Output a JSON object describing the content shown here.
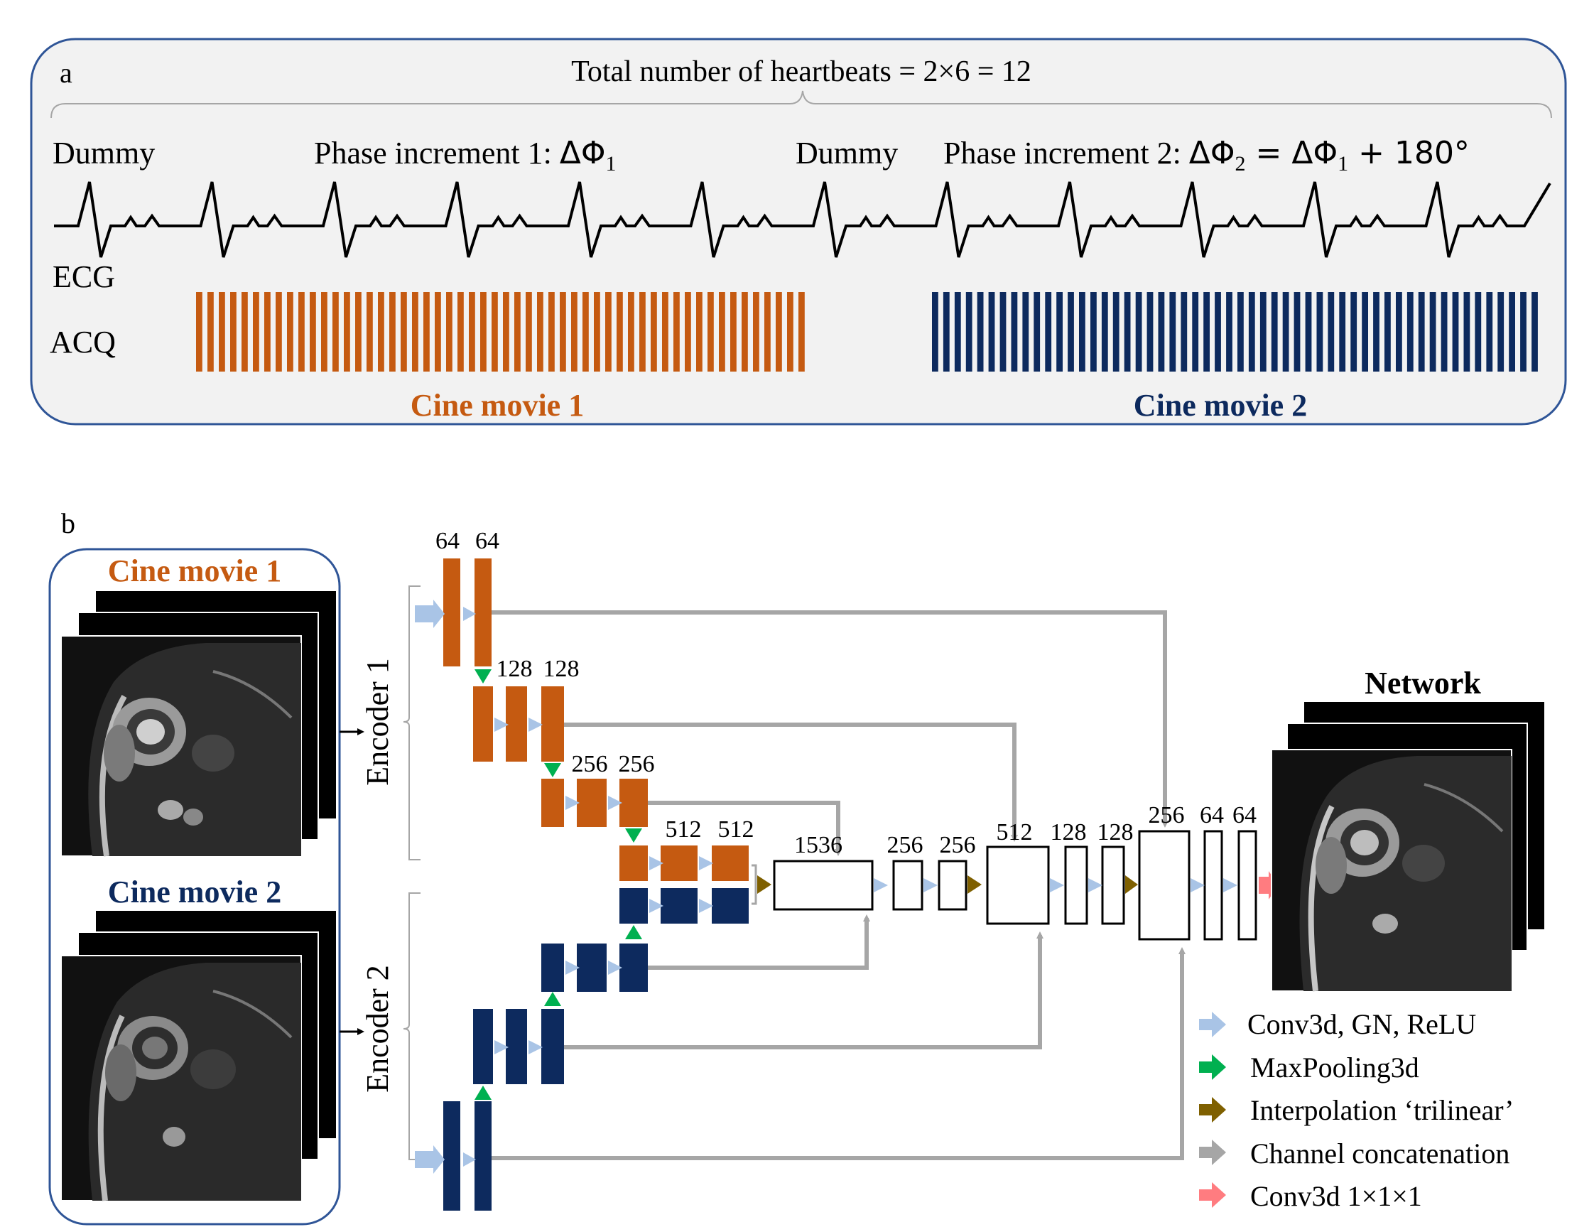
{
  "panel_a": {
    "letter": "a",
    "total_label": "Total number of heartbeats = 2×6 = 12",
    "dummy_1": "Dummy",
    "phase_1_prefix": "Phase increment 1: ",
    "phase_1_symbol": "ΔΦ",
    "phase_1_sub": "1",
    "dummy_2": "Dummy",
    "phase_2_prefix": "Phase increment 2: ",
    "phase_2_symbol": "ΔΦ",
    "phase_2_sub": "2",
    "phase_2_eq": " = ΔΦ",
    "phase_2_sub2": "1",
    "phase_2_tail": " + 180°",
    "ecg_label": "ECG",
    "acq_label": "ACQ",
    "cine_1_label": "Cine movie 1",
    "cine_2_label": "Cine movie 2",
    "colors": {
      "cine_1": "#C55A11",
      "cine_2": "#0D2A5E"
    }
  },
  "panel_b": {
    "letter": "b",
    "input_cine_1": "Cine movie 1",
    "input_cine_2": "Cine movie 2",
    "encoder_1": "Encoder 1",
    "encoder_2": "Encoder 2",
    "network_label": "Network",
    "channels": {
      "e1_64a": "64",
      "e1_64b": "64",
      "e1_128a": "128",
      "e1_128b": "128",
      "e1_256a": "256",
      "e1_256b": "256",
      "e1_512a": "512",
      "e1_512b": "512",
      "d_1536": "1536",
      "d_256a": "256",
      "d_256b": "256",
      "d_512": "512",
      "d_128a": "128",
      "d_128b": "128",
      "d_256c": "256",
      "d_64a": "64",
      "d_64b": "64"
    },
    "legend": [
      {
        "label": "Conv3d, GN, ReLU",
        "color": "#A9C4E6",
        "icon": "arrow-right-icon"
      },
      {
        "label": "MaxPooling3d",
        "color": "#00B050",
        "icon": "arrow-right-icon"
      },
      {
        "label": "Interpolation ‘trilinear’",
        "color": "#7F6000",
        "icon": "arrow-right-icon"
      },
      {
        "label": "Channel concatenation",
        "color": "#A6A6A6",
        "icon": "arrow-right-icon"
      },
      {
        "label": "Conv3d 1×1×1",
        "color": "#FF7C80",
        "icon": "arrow-right-icon"
      }
    ]
  }
}
